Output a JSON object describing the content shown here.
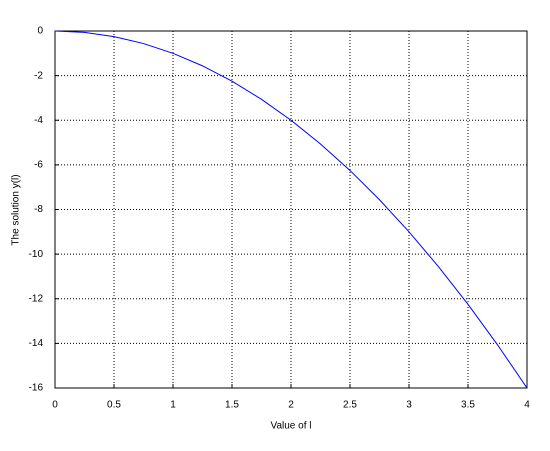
{
  "chart_data": {
    "type": "line",
    "x_label": "Value of l",
    "y_label": "The solution y(l)",
    "x": [
      0,
      0.25,
      0.5,
      0.75,
      1,
      1.25,
      1.5,
      1.75,
      2,
      2.25,
      2.5,
      2.75,
      3,
      3.25,
      3.5,
      3.75,
      4
    ],
    "series": [
      {
        "color": "#0000ff",
        "values": [
          0,
          -0.0625,
          -0.25,
          -0.5625,
          -1,
          -1.5625,
          -2.25,
          -3.0625,
          -4,
          -5.0625,
          -6.25,
          -7.5625,
          -9,
          -10.5625,
          -12.25,
          -14.0625,
          -16
        ]
      }
    ],
    "xlim": [
      0,
      4
    ],
    "xticks": [
      0,
      0.5,
      1,
      1.5,
      2,
      2.5,
      3,
      3.5,
      4
    ],
    "ylim": [
      -16,
      0
    ],
    "yticks": [
      0,
      -2,
      -4,
      -6,
      -8,
      -10,
      -12,
      -14,
      -16
    ],
    "grid": true
  }
}
